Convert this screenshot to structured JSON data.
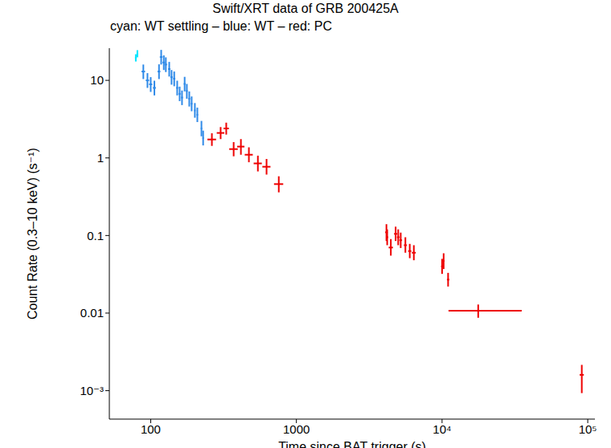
{
  "chart_data": {
    "type": "scatter",
    "title": "Swift/XRT data of GRB 200425A",
    "subtitle": "cyan: WT settling – blue: WT – red: PC",
    "x_label": "Time since BAT trigger (s)",
    "y_label": "Count Rate (0.3–10 keV) (s⁻¹)",
    "log": true,
    "xlim": [
      52,
      112000
    ],
    "ylim": [
      0.00043,
      26
    ],
    "xticks": [
      100,
      1000,
      {
        "value": 10000,
        "label": "10⁴"
      },
      {
        "value": 100000,
        "label": "10⁵"
      }
    ],
    "yticks": [
      {
        "value": 0.001,
        "label": "10⁻³"
      },
      0.01,
      0.1,
      1,
      10
    ],
    "series": [
      {
        "name": "WT settling",
        "color": "#00e5ff",
        "x": [
          79,
          81
        ],
        "values": [
          19.5,
          22
        ],
        "xerr": [
          [
            1,
            1
          ],
          [
            1,
            1
          ]
        ],
        "yerr": [
          [
            2,
            2.2
          ],
          [
            2.2,
            2.5
          ]
        ]
      },
      {
        "name": "WT",
        "color": "#2f8ae8",
        "x": [
          89,
          95,
          100,
          106,
          114,
          118,
          123,
          127,
          134,
          139,
          145,
          152,
          158,
          164,
          171,
          177,
          184,
          191,
          201,
          209,
          223,
          229
        ],
        "values": [
          13,
          10,
          8.9,
          8,
          13,
          20,
          17,
          16,
          14,
          11,
          10.5,
          8,
          6.7,
          6,
          9,
          7.3,
          5.8,
          5,
          4.1,
          3.6,
          2.4,
          1.8
        ],
        "xerr": [
          [
            2.5,
            2.5
          ],
          [
            2.5,
            2.5
          ],
          [
            2.5,
            2.5
          ],
          [
            2.5,
            2.5
          ],
          [
            2.5,
            2.5
          ],
          [
            2.5,
            2.5
          ],
          [
            2.5,
            2.5
          ],
          [
            2.5,
            2.5
          ],
          [
            2.5,
            2.5
          ],
          [
            2.5,
            2.5
          ],
          [
            2.5,
            2.5
          ],
          [
            2.5,
            2.5
          ],
          [
            2.5,
            2.5
          ],
          [
            2.5,
            2.5
          ],
          [
            2.5,
            2.5
          ],
          [
            2.5,
            2.5
          ],
          [
            2.5,
            2.5
          ],
          [
            2.5,
            2.5
          ],
          [
            2.5,
            2.5
          ],
          [
            2.5,
            2.5
          ],
          [
            2.5,
            2.5
          ],
          [
            2.5,
            2.5
          ]
        ],
        "yerr": [
          [
            2.6,
            3
          ],
          [
            2,
            2.4
          ],
          [
            1.8,
            2.1
          ],
          [
            1.6,
            1.9
          ],
          [
            2.6,
            3.1
          ],
          [
            4,
            4.7
          ],
          [
            3.4,
            4
          ],
          [
            3.2,
            3.8
          ],
          [
            2.8,
            3.3
          ],
          [
            2.2,
            2.6
          ],
          [
            2.1,
            2.5
          ],
          [
            1.6,
            1.9
          ],
          [
            1.3,
            1.6
          ],
          [
            1.2,
            1.4
          ],
          [
            1.8,
            2.1
          ],
          [
            1.5,
            1.7
          ],
          [
            1.2,
            1.4
          ],
          [
            1,
            1.2
          ],
          [
            0.8,
            1
          ],
          [
            0.7,
            0.85
          ],
          [
            0.5,
            0.6
          ],
          [
            0.35,
            0.45
          ]
        ]
      },
      {
        "name": "PC",
        "color": "#ee0000",
        "x": [
          263,
          302,
          330,
          371,
          416,
          472,
          544,
          624,
          757,
          4150,
          4200,
          4450,
          4800,
          5000,
          5200,
          5600,
          6000,
          6400,
          10000,
          10250,
          11000,
          17700,
          91000
        ],
        "values": [
          1.73,
          2.1,
          2.4,
          1.3,
          1.4,
          1.1,
          0.85,
          0.77,
          0.46,
          0.11,
          0.095,
          0.07,
          0.105,
          0.095,
          0.087,
          0.075,
          0.063,
          0.06,
          0.04,
          0.047,
          0.027,
          0.0107,
          0.0016
        ],
        "xerr": [
          [
            18,
            18
          ],
          [
            18,
            18
          ],
          [
            14,
            14
          ],
          [
            25,
            25
          ],
          [
            24,
            24
          ],
          [
            30,
            30
          ],
          [
            35,
            35
          ],
          [
            40,
            40
          ],
          [
            55,
            55
          ],
          [
            80,
            80
          ],
          [
            70,
            70
          ],
          [
            150,
            150
          ],
          [
            120,
            120
          ],
          [
            100,
            100
          ],
          [
            110,
            110
          ],
          [
            130,
            130
          ],
          [
            150,
            150
          ],
          [
            200,
            200
          ],
          [
            150,
            150
          ],
          [
            150,
            150
          ],
          [
            200,
            200
          ],
          [
            6630,
            17500
          ],
          [
            3000,
            3000
          ]
        ],
        "yerr": [
          [
            0.3,
            0.35
          ],
          [
            0.35,
            0.4
          ],
          [
            0.4,
            0.45
          ],
          [
            0.25,
            0.3
          ],
          [
            0.3,
            0.35
          ],
          [
            0.22,
            0.27
          ],
          [
            0.18,
            0.22
          ],
          [
            0.16,
            0.2
          ],
          [
            0.1,
            0.12
          ],
          [
            0.025,
            0.03
          ],
          [
            0.02,
            0.025
          ],
          [
            0.015,
            0.02
          ],
          [
            0.02,
            0.025
          ],
          [
            0.02,
            0.025
          ],
          [
            0.018,
            0.022
          ],
          [
            0.015,
            0.02
          ],
          [
            0.012,
            0.015
          ],
          [
            0.012,
            0.015
          ],
          [
            0.008,
            0.01
          ],
          [
            0.01,
            0.012
          ],
          [
            0.005,
            0.006
          ],
          [
            0.002,
            0.0022
          ],
          [
            0.00067,
            0.00055
          ]
        ]
      }
    ]
  }
}
